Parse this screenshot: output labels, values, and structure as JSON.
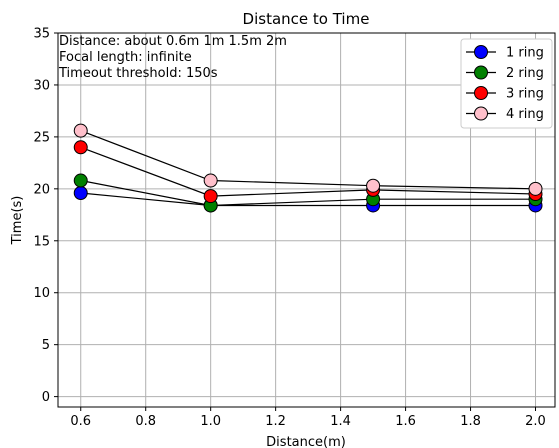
{
  "chart_data": {
    "type": "line",
    "title": "Distance to Time",
    "xlabel": "Distance(m)",
    "ylabel": "Time(s)",
    "xlim": [
      0.53,
      2.06
    ],
    "ylim": [
      -1,
      35
    ],
    "x_ticks": [
      0.6,
      0.8,
      1.0,
      1.2,
      1.4,
      1.6,
      1.8,
      2.0
    ],
    "y_ticks": [
      0,
      5,
      10,
      15,
      20,
      25,
      30,
      35
    ],
    "grid": true,
    "legend_position": "top-right",
    "annotations": [
      "Distance: about 0.6m 1m 1.5m 2m",
      "Focal length: infinite",
      "Timeout threshold: 150s"
    ],
    "x": [
      0.6,
      1.0,
      1.5,
      2.0
    ],
    "series": [
      {
        "name": "1 ring",
        "color": "#0000ff",
        "values": [
          19.6,
          18.4,
          18.4,
          18.4
        ]
      },
      {
        "name": "2 ring",
        "color": "#008000",
        "values": [
          20.8,
          18.4,
          19.0,
          19.0
        ]
      },
      {
        "name": "3 ring",
        "color": "#ff0000",
        "values": [
          24.0,
          19.3,
          19.9,
          19.5
        ]
      },
      {
        "name": "4 ring",
        "color": "#ffc0cb",
        "values": [
          25.6,
          20.8,
          20.3,
          20.0
        ]
      }
    ]
  }
}
